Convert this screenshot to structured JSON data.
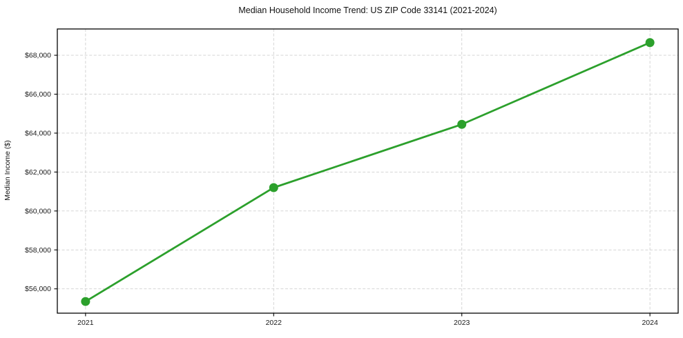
{
  "title": "Median Household Income Trend: US ZIP Code 33141 (2021-2024)",
  "chart_data": {
    "type": "line",
    "title": "Median Household Income Trend: US ZIP Code 33141 (2021-2024)",
    "xlabel": "",
    "ylabel": "Median Income ($)",
    "x": [
      2021,
      2022,
      2023,
      2024
    ],
    "series": [
      {
        "name": "Median Household Income",
        "values": [
          55350,
          61200,
          64450,
          68650
        ]
      }
    ],
    "xlim": [
      2020.85,
      2024.15
    ],
    "ylim": [
      54750,
      69350
    ],
    "xticks": [
      2021,
      2022,
      2023,
      2024
    ],
    "xtick_labels": [
      "2021",
      "2022",
      "2023",
      "2024"
    ],
    "yticks": [
      56000,
      58000,
      60000,
      62000,
      64000,
      66000,
      68000
    ],
    "ytick_labels": [
      "$56,000",
      "$58,000",
      "$60,000",
      "$62,000",
      "$64,000",
      "$66,000",
      "$68,000"
    ],
    "grid": true,
    "grid_style": "dashed",
    "legend_position": "none",
    "colors": {
      "line": "#2ca02c",
      "marker": "#2ca02c",
      "grid": "#cfcfcf",
      "spine": "#000000",
      "text": "#1a1a1a",
      "background": "#ffffff"
    }
  }
}
